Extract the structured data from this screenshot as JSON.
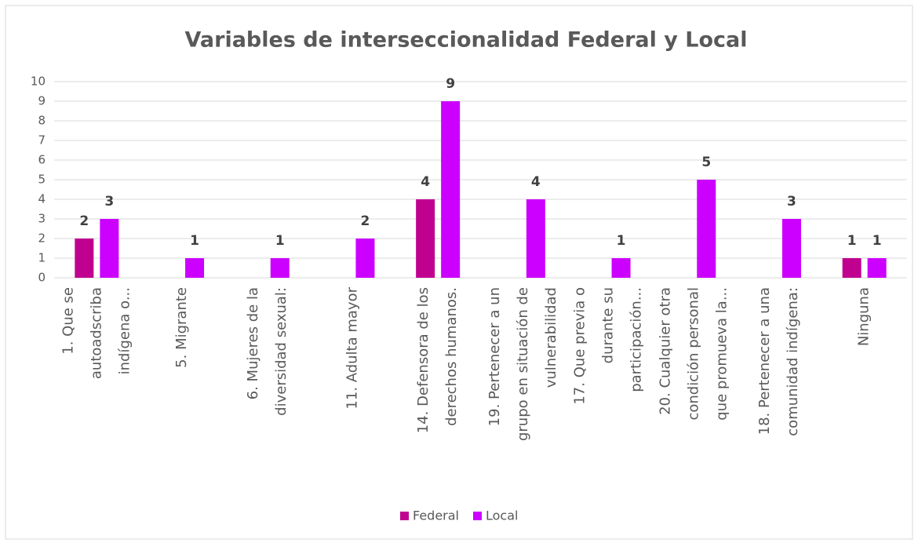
{
  "chart_data": {
    "type": "bar",
    "title": "Variables de interseccionalidad Federal y Local",
    "categories": [
      [
        "1. Que se",
        "autoadscriba",
        "indígena o..."
      ],
      [
        "5. Migrante"
      ],
      [
        "6. Mujeres de la",
        "diversidad sexual:"
      ],
      [
        "11. Adulta mayor"
      ],
      [
        "14. Defensora de los",
        "derechos humanos."
      ],
      [
        "19. Pertenecer a un",
        "grupo en situación de",
        "vulnerabilidad"
      ],
      [
        "17. Que previa o",
        "durante su",
        "participación..."
      ],
      [
        "20. Cualquier otra",
        "condición personal",
        "que promueva la..."
      ],
      [
        "18. Pertenecer a una",
        "comunidad indígena:"
      ],
      [
        "Ninguna"
      ]
    ],
    "series": [
      {
        "name": "Federal",
        "color": "#c0008f",
        "values": [
          2,
          null,
          null,
          null,
          4,
          null,
          null,
          null,
          null,
          1
        ]
      },
      {
        "name": "Local",
        "color": "#cc00ff",
        "values": [
          3,
          1,
          1,
          2,
          9,
          4,
          1,
          5,
          3,
          1
        ]
      }
    ],
    "ylim": [
      0,
      10
    ],
    "yticks": [
      0,
      1,
      2,
      3,
      4,
      5,
      6,
      7,
      8,
      9,
      10
    ],
    "grid": true,
    "legend": "bottom"
  }
}
